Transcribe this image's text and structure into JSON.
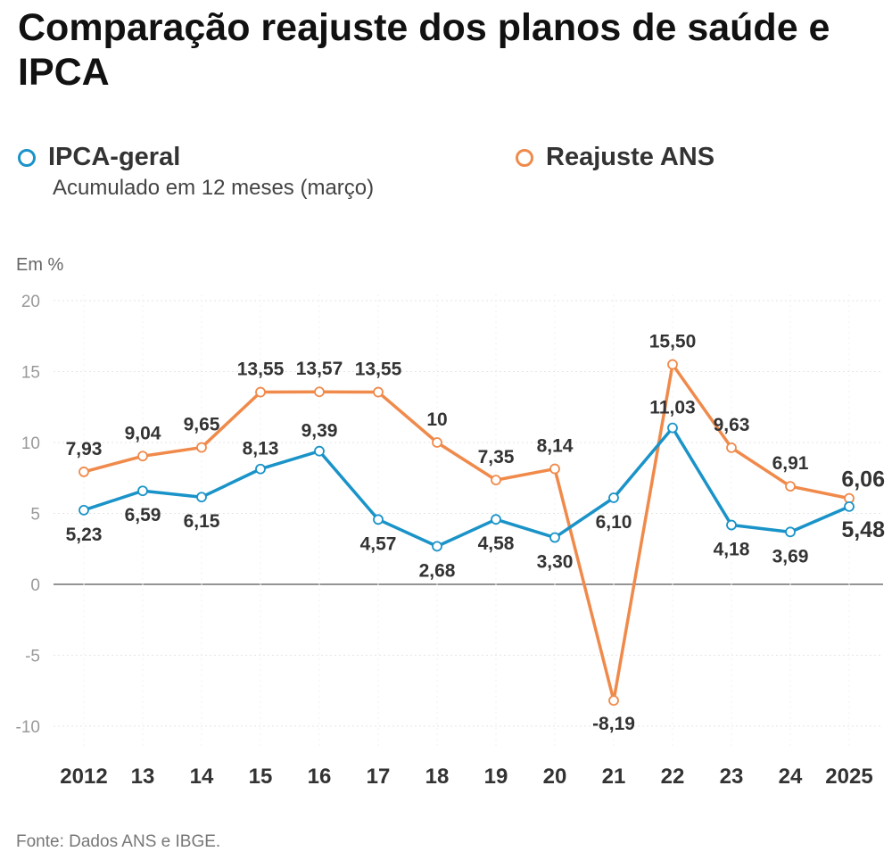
{
  "title": "Comparação reajuste dos planos de saúde e IPCA",
  "legend": [
    {
      "label": "IPCA-geral",
      "color": "#1a93c8"
    },
    {
      "label": "Reajuste ANS",
      "color": "#f08a4b"
    }
  ],
  "subtitle": "Acumulado em 12 meses (março)",
  "source": "Fonte: Dados ANS e IBGE.",
  "chart_data": {
    "type": "line",
    "unit_label": "Em %",
    "x": [
      "2012",
      "13",
      "14",
      "15",
      "16",
      "17",
      "18",
      "19",
      "20",
      "21",
      "22",
      "23",
      "24",
      "2025"
    ],
    "series": [
      {
        "name": "IPCA-geral",
        "color": "#1a93c8",
        "values": [
          5.23,
          6.59,
          6.15,
          8.13,
          9.39,
          4.57,
          2.68,
          4.58,
          3.3,
          6.1,
          11.03,
          4.18,
          3.69,
          5.48
        ],
        "labels": [
          "5,23",
          "6,59",
          "6,15",
          "8,13",
          "9,39",
          "4,57",
          "2,68",
          "4,58",
          "3,30",
          "6,10",
          "11,03",
          "4,18",
          "3,69",
          "5,48"
        ]
      },
      {
        "name": "Reajuste ANS",
        "color": "#f08a4b",
        "values": [
          7.93,
          9.04,
          9.65,
          13.55,
          13.57,
          13.55,
          10,
          7.35,
          8.14,
          -8.19,
          15.5,
          9.63,
          6.91,
          6.06
        ],
        "labels": [
          "7,93",
          "9,04",
          "9,65",
          "13,55",
          "13,57",
          "13,55",
          "10",
          "7,35",
          "8,14",
          "-8,19",
          "15,50",
          "9,63",
          "6,91",
          "6,06"
        ]
      }
    ],
    "yticks": [
      20,
      15,
      10,
      5,
      0,
      -5,
      -10
    ],
    "ylim": [
      -10,
      20
    ],
    "grid": true
  }
}
